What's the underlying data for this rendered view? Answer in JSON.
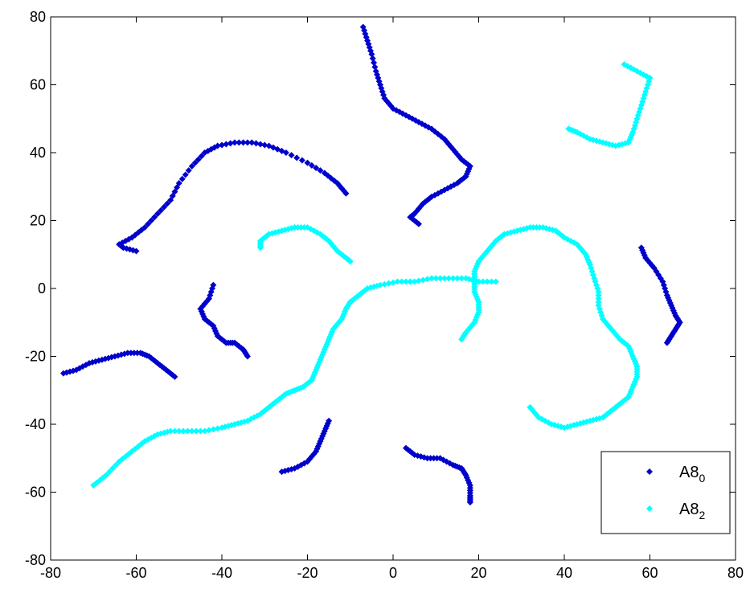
{
  "chart_data": {
    "type": "scatter",
    "title": "",
    "xlabel": "",
    "ylabel": "",
    "xlim": [
      -80,
      80
    ],
    "ylim": [
      -80,
      80
    ],
    "xticks": [
      -80,
      -60,
      -40,
      -20,
      0,
      20,
      40,
      60,
      80
    ],
    "yticks": [
      -80,
      -60,
      -40,
      -20,
      0,
      20,
      40,
      60,
      80
    ],
    "grid": false,
    "legend_position": "bottom-right",
    "marker": "diamond",
    "series": [
      {
        "name": "A8",
        "name_subscript": "0",
        "color": "#0000cc",
        "curves": [
          [
            [
              -11,
              28
            ],
            [
              -13,
              31
            ],
            [
              -16,
              34
            ],
            [
              -20,
              37
            ],
            [
              -25,
              40
            ],
            [
              -29,
              42
            ],
            [
              -33,
              43
            ],
            [
              -37,
              43
            ],
            [
              -41,
              42
            ],
            [
              -44,
              40
            ],
            [
              -47,
              36
            ],
            [
              -50,
              31
            ],
            [
              -52,
              26
            ],
            [
              -55,
              22
            ],
            [
              -58,
              18
            ],
            [
              -61,
              15
            ],
            [
              -64,
              13
            ],
            [
              -63,
              12
            ],
            [
              -60,
              11
            ]
          ],
          [
            [
              -7,
              77
            ],
            [
              -6,
              73
            ],
            [
              -5,
              69
            ],
            [
              -4,
              64
            ],
            [
              -3,
              60
            ],
            [
              -2,
              56
            ],
            [
              0,
              53
            ],
            [
              3,
              51
            ],
            [
              6,
              49
            ],
            [
              9,
              47
            ],
            [
              12,
              44
            ],
            [
              14,
              41
            ],
            [
              16,
              38
            ],
            [
              18,
              36
            ],
            [
              17,
              33
            ],
            [
              15,
              31
            ],
            [
              12,
              29
            ],
            [
              9,
              27
            ],
            [
              7,
              25
            ],
            [
              5,
              22
            ],
            [
              4,
              21
            ],
            [
              6,
              19
            ]
          ],
          [
            [
              -42,
              1
            ],
            [
              -43,
              -3
            ],
            [
              -45,
              -6
            ],
            [
              -44,
              -9
            ],
            [
              -42,
              -11
            ],
            [
              -41,
              -14
            ],
            [
              -39,
              -16
            ],
            [
              -37,
              -16
            ],
            [
              -35,
              -18
            ],
            [
              -34,
              -20
            ]
          ],
          [
            [
              -77,
              -25
            ],
            [
              -74,
              -24
            ],
            [
              -71,
              -22
            ],
            [
              -68,
              -21
            ],
            [
              -65,
              -20
            ],
            [
              -62,
              -19
            ],
            [
              -59,
              -19
            ],
            [
              -57,
              -20
            ],
            [
              -55,
              -22
            ],
            [
              -53,
              -24
            ],
            [
              -51,
              -26
            ]
          ],
          [
            [
              -26,
              -54
            ],
            [
              -23,
              -53
            ],
            [
              -20,
              -51
            ],
            [
              -18,
              -48
            ],
            [
              -17,
              -45
            ],
            [
              -16,
              -42
            ],
            [
              -15,
              -39
            ]
          ],
          [
            [
              3,
              -47
            ],
            [
              5,
              -49
            ],
            [
              8,
              -50
            ],
            [
              11,
              -50
            ],
            [
              14,
              -52
            ],
            [
              16,
              -53
            ],
            [
              17,
              -55
            ],
            [
              18,
              -58
            ],
            [
              18,
              -61
            ],
            [
              18,
              -63
            ]
          ],
          [
            [
              58,
              12
            ],
            [
              59,
              9
            ],
            [
              61,
              6
            ],
            [
              63,
              2
            ],
            [
              64,
              -2
            ],
            [
              65,
              -5
            ],
            [
              66,
              -8
            ],
            [
              67,
              -10
            ],
            [
              66,
              -12
            ],
            [
              65,
              -14
            ],
            [
              64,
              -16
            ]
          ]
        ]
      },
      {
        "name": "A8",
        "name_subscript": "2",
        "color": "#00ffff",
        "curves": [
          [
            [
              54,
              66
            ],
            [
              57,
              64
            ],
            [
              60,
              62
            ],
            [
              59,
              58
            ],
            [
              58,
              54
            ],
            [
              57,
              50
            ],
            [
              56,
              46
            ],
            [
              55,
              43
            ],
            [
              52,
              42
            ],
            [
              49,
              43
            ],
            [
              46,
              44
            ],
            [
              43,
              46
            ],
            [
              41,
              47
            ]
          ],
          [
            [
              -31,
              12
            ],
            [
              -31,
              14
            ],
            [
              -29,
              16
            ],
            [
              -26,
              17
            ],
            [
              -23,
              18
            ],
            [
              -20,
              18
            ],
            [
              -17,
              16
            ],
            [
              -15,
              14
            ],
            [
              -13,
              11
            ],
            [
              -11,
              9
            ],
            [
              -10,
              8
            ]
          ],
          [
            [
              -70,
              -58
            ],
            [
              -67,
              -55
            ],
            [
              -64,
              -51
            ],
            [
              -61,
              -48
            ],
            [
              -58,
              -45
            ],
            [
              -55,
              -43
            ],
            [
              -52,
              -42
            ],
            [
              -48,
              -42
            ],
            [
              -44,
              -42
            ],
            [
              -40,
              -41
            ],
            [
              -37,
              -40
            ],
            [
              -34,
              -39
            ],
            [
              -31,
              -37
            ],
            [
              -29,
              -35
            ],
            [
              -27,
              -33
            ],
            [
              -25,
              -31
            ],
            [
              -23,
              -30
            ],
            [
              -21,
              -29
            ],
            [
              -19,
              -27
            ],
            [
              -18,
              -24
            ],
            [
              -17,
              -21
            ],
            [
              -16,
              -18
            ],
            [
              -15,
              -15
            ],
            [
              -14,
              -12
            ],
            [
              -12,
              -9
            ],
            [
              -11,
              -6
            ],
            [
              -10,
              -4
            ],
            [
              -8,
              -2
            ],
            [
              -6,
              0
            ],
            [
              -3,
              1
            ],
            [
              1,
              2
            ],
            [
              5,
              2
            ],
            [
              9,
              3
            ],
            [
              13,
              3
            ],
            [
              17,
              3
            ],
            [
              20,
              2
            ],
            [
              24,
              2
            ]
          ],
          [
            [
              16,
              -15
            ],
            [
              17,
              -13
            ],
            [
              19,
              -10
            ],
            [
              20,
              -7
            ],
            [
              20,
              -4
            ],
            [
              19,
              -1
            ],
            [
              19,
              2
            ],
            [
              19,
              5
            ],
            [
              20,
              8
            ],
            [
              22,
              11
            ],
            [
              24,
              14
            ],
            [
              26,
              16
            ],
            [
              29,
              17
            ],
            [
              32,
              18
            ],
            [
              35,
              18
            ],
            [
              38,
              17
            ],
            [
              40,
              15
            ],
            [
              43,
              13
            ],
            [
              45,
              10
            ],
            [
              46,
              7
            ],
            [
              47,
              3
            ],
            [
              48,
              -1
            ],
            [
              48,
              -5
            ],
            [
              49,
              -9
            ],
            [
              51,
              -12
            ],
            [
              53,
              -15
            ],
            [
              55,
              -17
            ],
            [
              56,
              -20
            ],
            [
              57,
              -23
            ],
            [
              57,
              -26
            ],
            [
              56,
              -29
            ],
            [
              55,
              -32
            ],
            [
              53,
              -34
            ],
            [
              51,
              -36
            ],
            [
              49,
              -38
            ],
            [
              46,
              -39
            ],
            [
              43,
              -40
            ],
            [
              40,
              -41
            ],
            [
              37,
              -40
            ],
            [
              34,
              -38
            ],
            [
              32,
              -35
            ]
          ]
        ]
      }
    ]
  }
}
